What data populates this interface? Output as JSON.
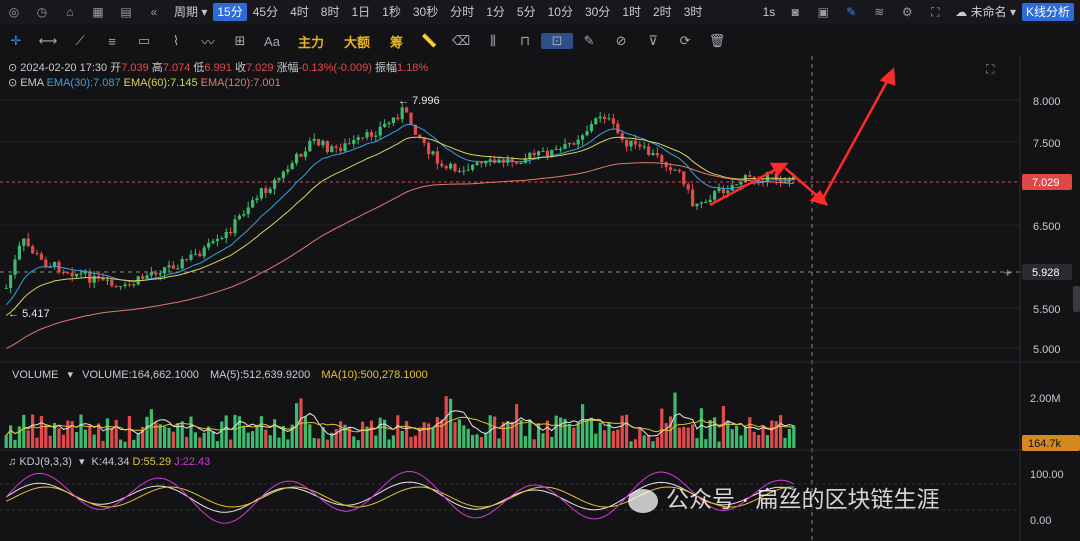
{
  "toolbar": {
    "periods": [
      "周期",
      "15分",
      "45分",
      "4时",
      "8时",
      "1日",
      "1秒",
      "30秒",
      "分时",
      "1分",
      "5分",
      "10分",
      "30分",
      "1时",
      "2时",
      "3时"
    ],
    "active_period": "15分",
    "speed": "1s",
    "layout_name": "未命名",
    "kline_analysis": "K线分析"
  },
  "drawing_tools": [
    "主力",
    "大额",
    "筹"
  ],
  "ohlc": {
    "time": "2024-02-20 17:30",
    "open_label": "开",
    "open": "7.039",
    "high_label": "高",
    "high": "7.074",
    "low_label": "低",
    "low": "6.991",
    "close_label": "收",
    "close": "7.029",
    "change_label": "涨幅",
    "change": "-0.13%(-0.009)",
    "amp_label": "振幅",
    "amp": "1.18%"
  },
  "ema": {
    "label": "EMA",
    "ema30": "EMA(30):7.087",
    "ema60": "EMA(60):7.145",
    "ema120": "EMA(120):7.001"
  },
  "price_axis": [
    "8.000",
    "7.500",
    "6.500",
    "5.500",
    "5.000"
  ],
  "price_tag": "7.029",
  "cursor_price": "5.928",
  "high_mark": "7.996",
  "low_mark": "5.417",
  "volume": {
    "label": "VOLUME",
    "value": "VOLUME:164,662.1000",
    "ma5": "MA(5):512,639.9200",
    "ma10": "MA(10):500,278.1000",
    "axis_2m": "2.00M",
    "tag": "164.7k"
  },
  "kdj": {
    "label": "KDJ(9,3,3)",
    "k": "K:44.34",
    "d": "D:55.29",
    "j": "J:22.43",
    "axis_100": "100.00",
    "axis_0": "0.00"
  },
  "watermark": "公众号 · 扁丝的区块链生涯",
  "colors": {
    "up": "#3dbb6e",
    "down": "#e24b4b",
    "ema30": "#3aa0e0",
    "ema60": "#d6d45a",
    "ema120": "#e07a6a",
    "arrow": "#ff2a2a",
    "accent": "#2f6bd8",
    "tag": "#e04848",
    "voltag": "#d48a1e"
  }
}
